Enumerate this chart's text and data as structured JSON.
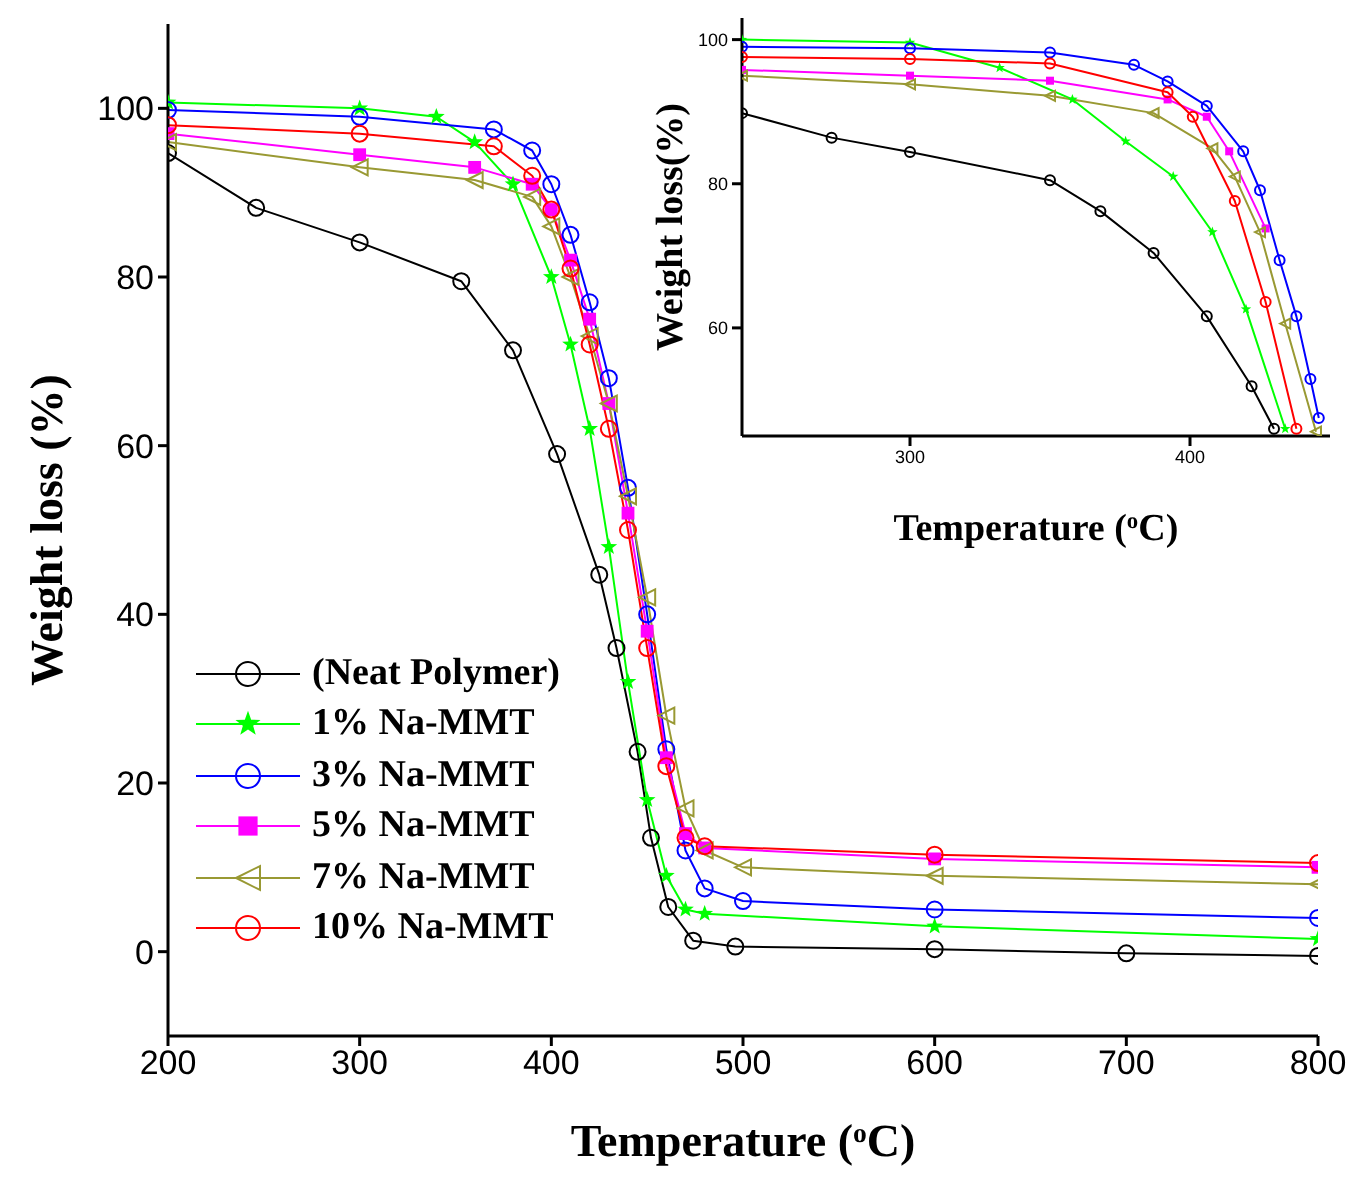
{
  "chart_data": [
    {
      "type": "line",
      "xlabel": "Temperature ($^{o}$C)",
      "ylabel": "Weight loss (%)",
      "xlim": [
        200,
        800
      ],
      "xticks": [
        200,
        300,
        400,
        500,
        600,
        700,
        800
      ],
      "ylim": [
        -10,
        110
      ],
      "yticks": [
        0,
        20,
        40,
        60,
        80,
        100
      ],
      "legend": "left",
      "series": [
        {
          "name": "(Neat Polymer)",
          "color": "#000000",
          "marker": "circle",
          "x": [
            200,
            246,
            300,
            353,
            380,
            403,
            425,
            434,
            445,
            452,
            461,
            474,
            496,
            600,
            700,
            800
          ],
          "values": [
            94.7,
            88.2,
            84.1,
            79.5,
            71.3,
            59,
            44.7,
            36,
            23.7,
            13.5,
            5.3,
            1.3,
            0.6,
            0.3,
            -0.2,
            -0.5
          ]
        },
        {
          "name": "1% Na-MMT",
          "color": "#00ff00",
          "marker": "star",
          "x": [
            200,
            300,
            340,
            360,
            380,
            400,
            410,
            420,
            430,
            440,
            450,
            460,
            470,
            480,
            600,
            800
          ],
          "values": [
            100.7,
            100,
            99,
            96,
            91,
            80,
            72,
            62,
            48,
            32,
            18,
            9,
            5,
            4.5,
            3,
            1.5
          ]
        },
        {
          "name": "3% Na-MMT",
          "color": "#0000ff",
          "marker": "circle",
          "x": [
            200,
            300,
            370,
            390,
            400,
            410,
            420,
            430,
            440,
            450,
            460,
            470,
            480,
            500,
            600,
            800
          ],
          "values": [
            99.8,
            99,
            97.5,
            95,
            91,
            85,
            77,
            68,
            55,
            40,
            24,
            12,
            7.5,
            6,
            5,
            4
          ]
        },
        {
          "name": "5% Na-MMT",
          "color": "#ff00ff",
          "marker": "square",
          "x": [
            200,
            300,
            360,
            390,
            400,
            410,
            420,
            430,
            440,
            450,
            460,
            470,
            480,
            600,
            800
          ],
          "values": [
            97,
            94.5,
            93,
            91,
            88,
            82,
            75,
            65,
            52,
            38,
            23,
            14,
            12.3,
            11,
            10
          ]
        },
        {
          "name": "7% Na-MMT",
          "color": "#999933",
          "marker": "triangle",
          "x": [
            200,
            300,
            360,
            390,
            400,
            410,
            420,
            430,
            440,
            450,
            460,
            470,
            480,
            500,
            600,
            800
          ],
          "values": [
            96,
            93,
            91.5,
            89.5,
            86,
            80,
            73,
            65,
            54,
            42,
            28,
            17,
            12,
            10,
            9,
            8
          ]
        },
        {
          "name": "10% Na-MMT",
          "color": "#ff0000",
          "marker": "circle",
          "x": [
            200,
            300,
            370,
            390,
            400,
            410,
            420,
            430,
            440,
            450,
            460,
            470,
            480,
            600,
            800
          ],
          "values": [
            98,
            97,
            95.5,
            92,
            88,
            81,
            72,
            62,
            50,
            36,
            22,
            13.5,
            12.5,
            11.5,
            10.5
          ]
        }
      ]
    },
    {
      "type": "line",
      "xlabel": "Temperature ($^{o}$C)",
      "ylabel": "Weight loss(%)",
      "xlim": [
        240,
        450
      ],
      "xticks": [
        300,
        400
      ],
      "ylim": [
        45,
        103
      ],
      "yticks": [
        60,
        80,
        100
      ],
      "series": [
        {
          "color": "#000000",
          "marker": "circle",
          "x": [
            240,
            272,
            300,
            350,
            368,
            387,
            406,
            422,
            430
          ],
          "values": [
            89.8,
            86.4,
            84.4,
            80.5,
            76.2,
            70.4,
            61.6,
            51.9,
            46
          ]
        },
        {
          "color": "#00ff00",
          "marker": "star",
          "x": [
            240,
            300,
            332,
            358,
            377,
            394,
            408,
            420,
            434
          ],
          "values": [
            100,
            99.6,
            96.1,
            91.7,
            85.9,
            81,
            73.3,
            62.6,
            46
          ]
        },
        {
          "color": "#0000ff",
          "marker": "circle",
          "x": [
            240,
            300,
            350,
            380,
            392,
            406,
            419,
            425,
            432,
            438,
            443,
            446
          ],
          "values": [
            99,
            98.8,
            98.2,
            96.5,
            94.2,
            90.8,
            84.5,
            79.1,
            69.4,
            61.6,
            52.9,
            47.5
          ]
        },
        {
          "color": "#ff00ff",
          "marker": "square",
          "x": [
            240,
            300,
            350,
            392,
            406,
            414,
            427
          ],
          "values": [
            95.8,
            95,
            94.3,
            91.7,
            89.3,
            84.5,
            73.8
          ]
        },
        {
          "color": "#999933",
          "marker": "triangle",
          "x": [
            240,
            300,
            350,
            387,
            408,
            416,
            425,
            434,
            445
          ],
          "values": [
            95,
            93.8,
            92.2,
            89.8,
            84.9,
            81,
            73.3,
            60.6,
            45.6
          ]
        },
        {
          "color": "#ff0000",
          "marker": "circle",
          "x": [
            240,
            300,
            350,
            392,
            401,
            416,
            427,
            438
          ],
          "values": [
            97.6,
            97.3,
            96.7,
            92.7,
            89.3,
            77.6,
            63.6,
            46
          ]
        }
      ]
    }
  ]
}
